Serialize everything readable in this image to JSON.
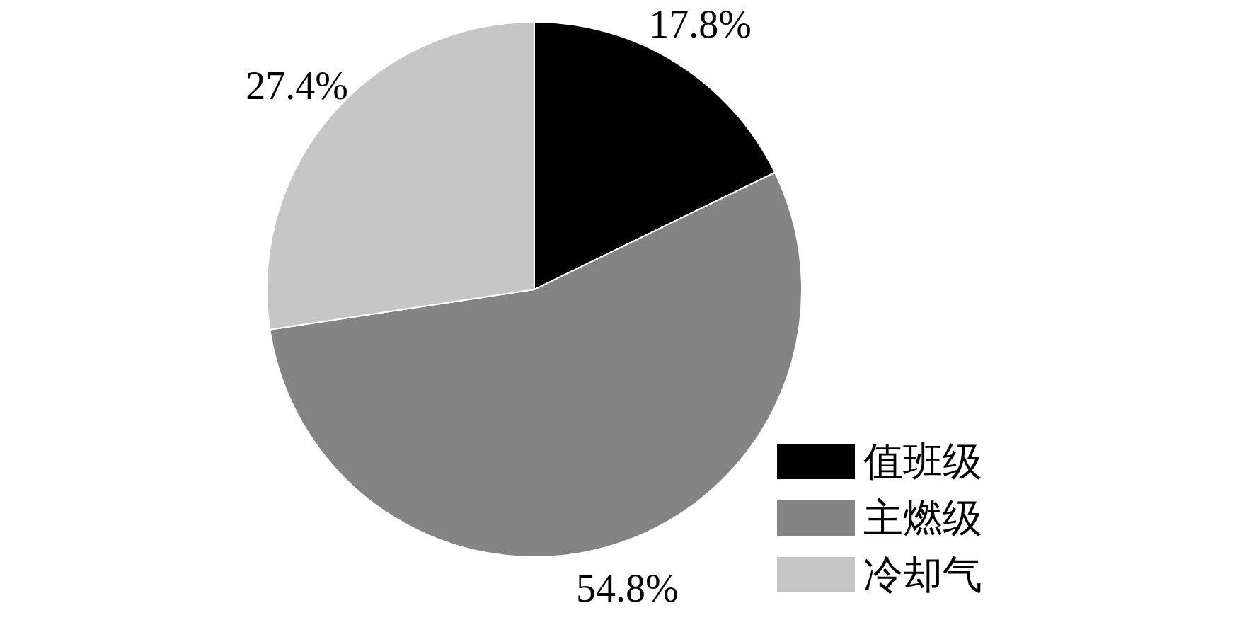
{
  "chart_data": {
    "type": "pie",
    "categories": [
      "值班级",
      "主燃级",
      "冷却气"
    ],
    "values": [
      17.8,
      54.8,
      27.4
    ],
    "value_labels": [
      "17.8%",
      "54.8%",
      "27.4%"
    ],
    "colors": [
      "#000000",
      "#848484",
      "#c6c6c6"
    ],
    "legend": "bottom right"
  }
}
